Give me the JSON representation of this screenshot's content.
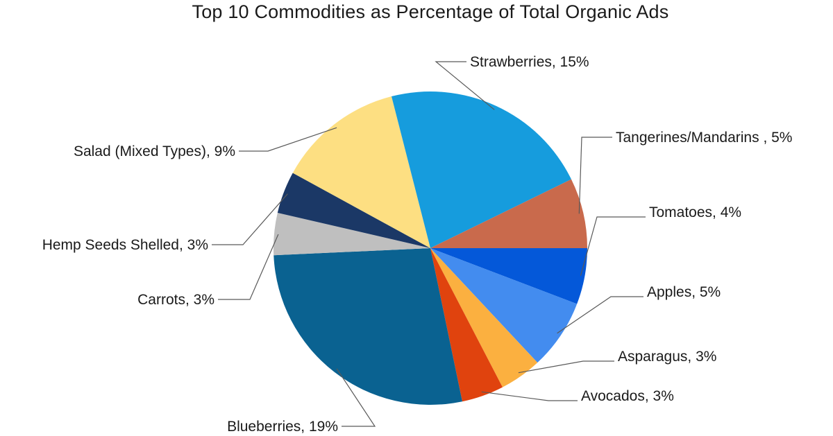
{
  "chart_data": {
    "type": "pie",
    "title": "Top 10 Commodities as Percentage of Total Organic Ads",
    "slices": [
      {
        "name": "Tomatoes",
        "value": 4,
        "label": "Tomatoes, 4%",
        "color": "#0458D9"
      },
      {
        "name": "Apples",
        "value": 5,
        "label": "Apples, 5%",
        "color": "#438CEF"
      },
      {
        "name": "Asparagus",
        "value": 3,
        "label": "Asparagus, 3%",
        "color": "#FBB040"
      },
      {
        "name": "Avocados",
        "value": 3,
        "label": "Avocados, 3%",
        "color": "#E0430E"
      },
      {
        "name": "Blueberries",
        "value": 19,
        "label": "Blueberries, 19%",
        "color": "#0A6291"
      },
      {
        "name": "Carrots",
        "value": 3,
        "label": "Carrots, 3%",
        "color": "#BFBFBF"
      },
      {
        "name": "Hemp Seeds Shelled",
        "value": 3,
        "label": "Hemp Seeds Shelled, 3%",
        "color": "#1B3866"
      },
      {
        "name": "Salad (Mixed Types)",
        "value": 9,
        "label": "Salad (Mixed Types), 9%",
        "color": "#FDDF82"
      },
      {
        "name": "Strawberries",
        "value": 15,
        "label": "Strawberries, 15%",
        "color": "#169CDD"
      },
      {
        "name": "Tangerines/Mandarins",
        "value": 5,
        "label": "Tangerines/Mandarins , 5%",
        "color": "#C96A4C"
      }
    ],
    "start": "3 o'clock",
    "direction": "clockwise",
    "legend": "none",
    "data_labels": "outside with leader lines"
  }
}
